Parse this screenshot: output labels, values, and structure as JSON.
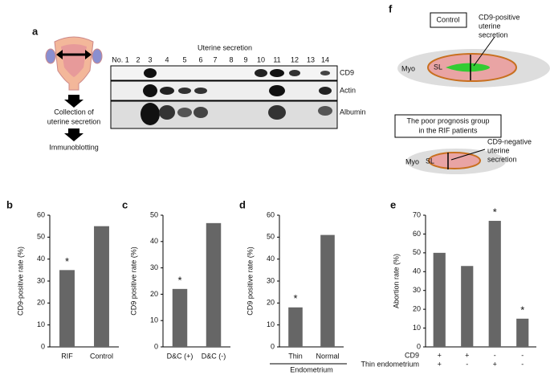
{
  "panel_a": {
    "label": "a",
    "header": "Uterine secretion",
    "lanes": [
      "No. 1",
      "2",
      "3",
      "4",
      "5",
      "6",
      "7",
      "8",
      "9",
      "10",
      "11",
      "12",
      "13",
      "14"
    ],
    "rows": [
      "CD9",
      "Actin",
      "Albumin"
    ],
    "steps": [
      [
        "Collection of",
        "uterine secretion"
      ],
      [
        "Immunoblotting"
      ]
    ]
  },
  "panel_f": {
    "label": "f",
    "control": "Control",
    "positive": [
      "CD9-positive",
      "uterine",
      "secretion"
    ],
    "poor_group": [
      "The poor prognosis group",
      "in the RIF patients"
    ],
    "negative": [
      "CD9-negative",
      "uterine",
      "secretion"
    ],
    "myo": "Myo",
    "sl": "SL"
  },
  "chart_data": [
    {
      "type": "bar",
      "panel_label": "b",
      "y_label": "CD9-positive rate (%)",
      "categories": [
        "RIF",
        "Control"
      ],
      "values": [
        35,
        55
      ],
      "color": "#666666",
      "ylim": [
        0,
        60
      ],
      "yticks": [
        0,
        10,
        20,
        30,
        40,
        50,
        60
      ],
      "annotations": [
        {
          "text": "*",
          "index": 0
        }
      ]
    },
    {
      "type": "bar",
      "panel_label": "c",
      "y_label": "CD9 positive rate (%)",
      "categories": [
        "D&C (+)",
        "D&C (-)"
      ],
      "values": [
        22,
        47
      ],
      "color": "#666666",
      "ylim": [
        0,
        50
      ],
      "yticks": [
        0,
        10,
        20,
        30,
        40,
        50
      ],
      "annotations": [
        {
          "text": "*",
          "index": 0
        }
      ]
    },
    {
      "type": "bar",
      "panel_label": "d",
      "y_label": "CD9 positive rate (%)",
      "categories": [
        "Thin",
        "Normal"
      ],
      "group_label": "Endometrium",
      "values": [
        18,
        51
      ],
      "color": "#666666",
      "ylim": [
        0,
        60
      ],
      "yticks": [
        0,
        10,
        20,
        30,
        40,
        50,
        60
      ],
      "annotations": [
        {
          "text": "*",
          "index": 0
        }
      ]
    },
    {
      "type": "bar",
      "panel_label": "e",
      "y_label": "Abortion rate (%)",
      "categories": [
        null,
        null,
        null,
        null
      ],
      "values": [
        50,
        43,
        67,
        15
      ],
      "color": "#666666",
      "ylim": [
        0,
        70
      ],
      "yticks": [
        0,
        10,
        20,
        30,
        40,
        50,
        60,
        70
      ],
      "annotations": [
        {
          "text": "*",
          "index": 2
        },
        {
          "text": "*",
          "index": 3
        }
      ],
      "condition_rows": [
        {
          "label": "CD9",
          "marks": [
            "+",
            "+",
            "-",
            "-"
          ]
        },
        {
          "label": "Thin endometrium",
          "marks": [
            "+",
            "-",
            "+",
            "-"
          ]
        }
      ]
    }
  ]
}
